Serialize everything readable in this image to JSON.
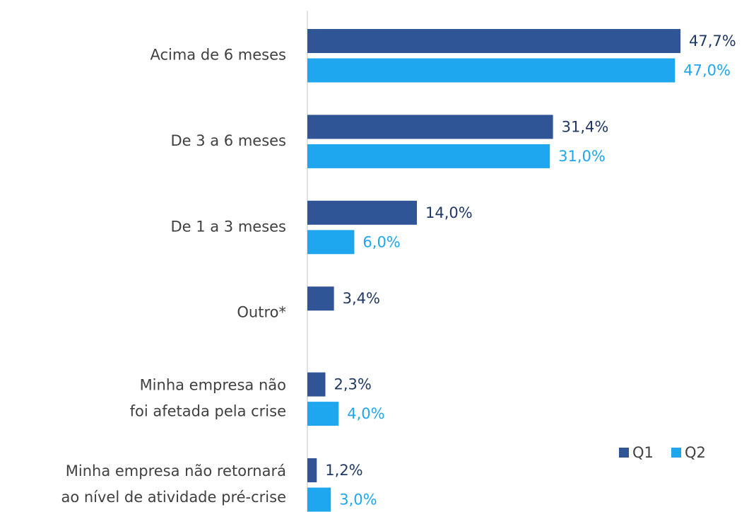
{
  "chart_data": {
    "type": "bar",
    "orientation": "horizontal",
    "categories": [
      [
        "Acima de 6 meses"
      ],
      [
        "De 3 a 6 meses"
      ],
      [
        "De 1 a 3 meses"
      ],
      [
        "Outro*"
      ],
      [
        "Minha empresa não",
        "foi afetada pela crise"
      ],
      [
        "Minha empresa não retornará",
        "ao nível de atividade pré-crise"
      ]
    ],
    "series": [
      {
        "name": "Q1",
        "color": "#2f5597",
        "label_color": "#1f3864",
        "values": [
          47.7,
          31.4,
          14.0,
          3.4,
          2.3,
          1.2
        ],
        "value_labels": [
          "47,7%",
          "31,4%",
          "14,0%",
          "3,4%",
          "2,3%",
          "1,2%"
        ]
      },
      {
        "name": "Q2",
        "color": "#1ea7ef",
        "label_color": "#1ea7ef",
        "values": [
          47.0,
          31.0,
          6.0,
          null,
          4.0,
          3.0
        ],
        "value_labels": [
          "47,0%",
          "31,0%",
          "6,0%",
          null,
          "4,0%",
          "3,0%"
        ]
      }
    ],
    "xlim": [
      0,
      50
    ],
    "legend": "bottom-right"
  }
}
